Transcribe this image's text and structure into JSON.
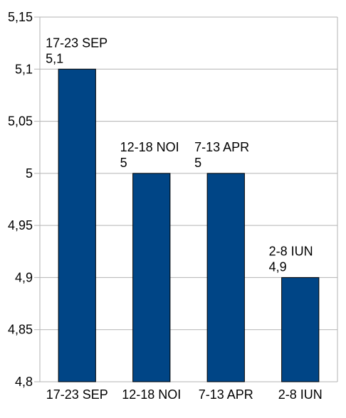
{
  "chart_data": {
    "type": "bar",
    "categories": [
      "17-23 SEP",
      "12-18 NOI",
      "7-13  APR",
      "2-8 IUN"
    ],
    "values": [
      5.1,
      5.0,
      5.0,
      4.9
    ],
    "data_labels": [
      {
        "category": "17-23 SEP",
        "value": "5,1"
      },
      {
        "category": "12-18 NOI",
        "value": "5"
      },
      {
        "category": "7-13  APR",
        "value": "5"
      },
      {
        "category": "2-8 IUN",
        "value": "4,9"
      }
    ],
    "y_ticks": [
      "4,8",
      "4,85",
      "4,9",
      "4,95",
      "5",
      "5,05",
      "5,1",
      "5,15"
    ],
    "ylim": [
      4.8,
      5.15
    ],
    "grid": true,
    "legend": "none",
    "title": "",
    "xlabel": "",
    "ylabel": "",
    "colors": {
      "bar_fill": "#004586",
      "bar_stroke": "#000000",
      "grid": "#b3b3b3",
      "axis": "#b3b3b3"
    }
  }
}
